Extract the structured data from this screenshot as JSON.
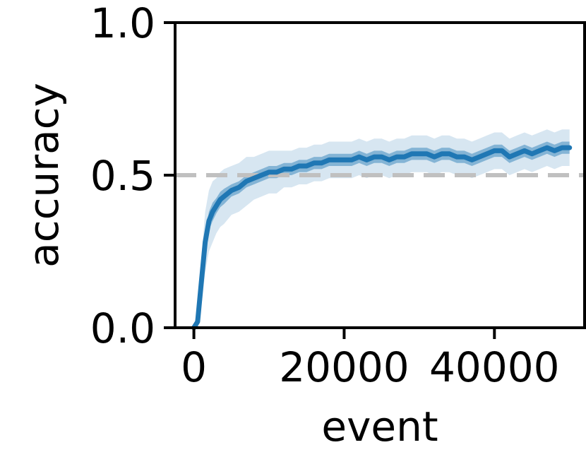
{
  "chart_data": {
    "type": "line",
    "title": "",
    "xlabel": "event",
    "ylabel": "accuracy",
    "xlim": [
      -2500,
      52000
    ],
    "ylim": [
      0.0,
      1.0
    ],
    "x_ticks": [
      0,
      20000,
      40000
    ],
    "x_tick_labels": [
      "0",
      "20000",
      "40000"
    ],
    "y_ticks": [
      0.0,
      0.5,
      1.0
    ],
    "y_tick_labels": [
      "0.0",
      "0.5",
      "1.0"
    ],
    "grid": false,
    "reference_line": {
      "y": 0.5,
      "style": "dashed",
      "color": "#c0c0c0"
    },
    "colors": {
      "line": "#1f77b4",
      "inner_band": "#1f77b4",
      "outer_band": "#1f77b4"
    },
    "series": [
      {
        "x": [
          0,
          500,
          1000,
          1500,
          2000,
          2500,
          3000,
          3500,
          4000,
          5000,
          6000,
          7000,
          8000,
          9000,
          10000,
          11000,
          12000,
          13000,
          14000,
          15000,
          16000,
          17000,
          18000,
          19000,
          20000,
          21000,
          22000,
          23000,
          24000,
          25000,
          26000,
          27000,
          28000,
          29000,
          30000,
          31000,
          32000,
          33000,
          34000,
          35000,
          36000,
          37000,
          38000,
          39000,
          40000,
          41000,
          42000,
          43000,
          44000,
          45000,
          46000,
          47000,
          48000,
          49000,
          50000
        ],
        "y": [
          0.0,
          0.02,
          0.15,
          0.28,
          0.35,
          0.38,
          0.4,
          0.42,
          0.43,
          0.45,
          0.46,
          0.48,
          0.49,
          0.5,
          0.51,
          0.51,
          0.52,
          0.52,
          0.53,
          0.53,
          0.54,
          0.54,
          0.55,
          0.55,
          0.55,
          0.55,
          0.56,
          0.55,
          0.56,
          0.56,
          0.55,
          0.56,
          0.56,
          0.57,
          0.57,
          0.57,
          0.56,
          0.57,
          0.57,
          0.56,
          0.56,
          0.55,
          0.56,
          0.57,
          0.58,
          0.58,
          0.56,
          0.57,
          0.58,
          0.57,
          0.58,
          0.59,
          0.58,
          0.59,
          0.59
        ],
        "inner_band": [
          0.0,
          0.02,
          0.03,
          0.03,
          0.03,
          0.03,
          0.025,
          0.025,
          0.025,
          0.02,
          0.02,
          0.02,
          0.02,
          0.02,
          0.02,
          0.02,
          0.02,
          0.02,
          0.02,
          0.02,
          0.02,
          0.02,
          0.02,
          0.02,
          0.02,
          0.02,
          0.02,
          0.02,
          0.02,
          0.02,
          0.02,
          0.02,
          0.02,
          0.02,
          0.02,
          0.02,
          0.02,
          0.02,
          0.02,
          0.02,
          0.02,
          0.02,
          0.02,
          0.02,
          0.02,
          0.02,
          0.02,
          0.02,
          0.02,
          0.02,
          0.02,
          0.02,
          0.02,
          0.02,
          0.02
        ],
        "outer_band": [
          0.0,
          0.05,
          0.08,
          0.1,
          0.1,
          0.1,
          0.09,
          0.09,
          0.09,
          0.08,
          0.08,
          0.08,
          0.07,
          0.07,
          0.07,
          0.07,
          0.06,
          0.06,
          0.06,
          0.06,
          0.06,
          0.06,
          0.06,
          0.06,
          0.06,
          0.06,
          0.06,
          0.06,
          0.06,
          0.06,
          0.06,
          0.06,
          0.06,
          0.06,
          0.06,
          0.06,
          0.06,
          0.06,
          0.06,
          0.06,
          0.06,
          0.06,
          0.06,
          0.06,
          0.06,
          0.06,
          0.06,
          0.06,
          0.06,
          0.06,
          0.06,
          0.06,
          0.06,
          0.06,
          0.06
        ]
      }
    ]
  }
}
